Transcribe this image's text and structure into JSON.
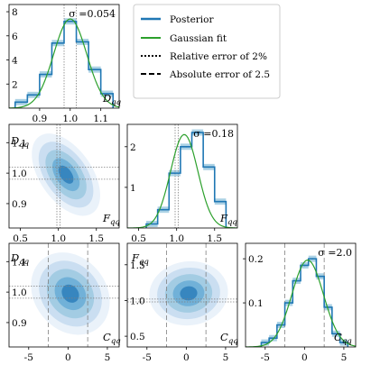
{
  "colors": {
    "posterior": "#1f77b4",
    "band": "#9ecae1",
    "gaussian": "#2ca02c",
    "reference": "#808080"
  },
  "legend": {
    "posterior": "Posterior",
    "gaussian": "Gaussian fit",
    "relative": "Relative error of 2%",
    "absolute": "Absolute error of 2.5"
  },
  "chart_data": [
    {
      "type": "histogram",
      "panel": "D_qq",
      "variable": "D_qq",
      "sigma_label": "σ =0.054",
      "x_edges": [
        0.82,
        0.86,
        0.9,
        0.94,
        0.98,
        1.02,
        1.06,
        1.1,
        1.14
      ],
      "values": [
        0.5,
        1.1,
        2.8,
        5.4,
        7.2,
        5.5,
        3.2,
        1.2
      ],
      "gaussian": {
        "mean": 1.0,
        "sd": 0.054,
        "peak": 7.4
      },
      "xlim": [
        0.8,
        1.16
      ],
      "ylim": [
        0,
        8.6
      ],
      "x_ticks": [
        0.9,
        1.0,
        1.1
      ],
      "x_tick_labels": [
        "0.9",
        "1.0",
        "1.1"
      ],
      "y_ticks": [
        2,
        4,
        6,
        8
      ],
      "y_tick_labels": [
        "2",
        "4",
        "6",
        "8"
      ],
      "ref_lines": [
        0.98,
        1.02
      ]
    },
    {
      "type": "histogram",
      "panel": "F_qq",
      "variable": "F_qq",
      "sigma_label": "σ =0.18",
      "x_edges": [
        0.6,
        0.75,
        0.9,
        1.05,
        1.2,
        1.35,
        1.5,
        1.65
      ],
      "values": [
        0.1,
        0.45,
        1.35,
        2.0,
        2.35,
        1.5,
        0.65
      ],
      "gaussian": {
        "mean": 1.1,
        "sd": 0.18,
        "peak": 2.3
      },
      "xlim": [
        0.35,
        1.8
      ],
      "ylim": [
        0,
        2.55
      ],
      "x_ticks": [
        0.5,
        1.0,
        1.5
      ],
      "x_tick_labels": [
        "0.5",
        "1.0",
        "1.5"
      ],
      "y_ticks": [
        1,
        2
      ],
      "y_tick_labels": [
        "1",
        "2"
      ],
      "ref_lines": [
        0.98,
        1.02
      ]
    },
    {
      "type": "histogram",
      "panel": "C_qq",
      "variable": "C_qq",
      "sigma_label": "σ =2.0",
      "x_edges": [
        -5.5,
        -4.5,
        -3.5,
        -2.5,
        -1.5,
        -0.5,
        0.5,
        1.5,
        2.5,
        3.5,
        4.5,
        5.5
      ],
      "values": [
        0.01,
        0.02,
        0.05,
        0.1,
        0.15,
        0.185,
        0.2,
        0.16,
        0.09,
        0.03,
        0.01
      ],
      "gaussian": {
        "mean": 0.4,
        "sd": 2.0,
        "peak": 0.197
      },
      "xlim": [
        -7.5,
        6.5
      ],
      "ylim": [
        0,
        0.235
      ],
      "x_ticks": [
        -5,
        0,
        5
      ],
      "x_tick_labels": [
        "-5",
        "0",
        "5"
      ],
      "y_ticks": [
        0.1,
        0.2
      ],
      "y_tick_labels": [
        "0.1",
        "0.2"
      ],
      "ref_lines": [
        -2.5,
        2.5
      ]
    },
    {
      "type": "contour",
      "panel": "F_qq vs D_qq",
      "x_variable": "F_qq",
      "y_variable": "D_qq",
      "center": [
        1.1,
        0.995
      ],
      "sd": [
        0.18,
        0.054
      ],
      "correlation": -0.5,
      "xlim": [
        0.35,
        1.8
      ],
      "ylim": [
        0.82,
        1.16
      ],
      "x_ticks": [
        0.5,
        1.0,
        1.5
      ],
      "x_tick_labels": [
        "0.5",
        "1.0",
        "1.5"
      ],
      "y_ticks": [
        0.9,
        1.0,
        1.1
      ],
      "y_tick_labels": [
        "0.9",
        "1.0",
        "1.1"
      ],
      "ref_lines_x": [
        0.98,
        1.02
      ],
      "ref_lines_y": [
        0.98,
        1.02
      ]
    },
    {
      "type": "contour",
      "panel": "C_qq vs D_qq",
      "x_variable": "C_qq",
      "y_variable": "D_qq",
      "center": [
        0.3,
        0.995
      ],
      "sd": [
        2.0,
        0.054
      ],
      "correlation": -0.2,
      "xlim": [
        -7.5,
        6.5
      ],
      "ylim": [
        0.82,
        1.16
      ],
      "x_ticks": [
        -5,
        0,
        5
      ],
      "x_tick_labels": [
        "-5",
        "0",
        "5"
      ],
      "y_ticks": [
        0.9,
        1.0,
        1.1
      ],
      "y_tick_labels": [
        "0.9",
        "1.0",
        "1.1"
      ],
      "ref_lines_x": [
        -2.5,
        2.5
      ],
      "ref_lines_y": [
        0.98,
        1.02
      ]
    },
    {
      "type": "contour",
      "panel": "C_qq vs F_qq",
      "x_variable": "C_qq",
      "y_variable": "F_qq",
      "center": [
        0.3,
        1.1
      ],
      "sd": [
        2.0,
        0.18
      ],
      "correlation": 0.05,
      "xlim": [
        -7.5,
        6.5
      ],
      "ylim": [
        0.35,
        1.8
      ],
      "x_ticks": [
        -5,
        0,
        5
      ],
      "x_tick_labels": [
        "-5",
        "0",
        "5"
      ],
      "y_ticks": [
        0.5,
        1.0,
        1.5
      ],
      "y_tick_labels": [
        "0.5",
        "1.0",
        "1.5"
      ],
      "ref_lines_x": [
        -2.5,
        2.5
      ],
      "ref_lines_y": [
        0.98,
        1.02
      ]
    }
  ],
  "axis_labels": {
    "d_qq": "D",
    "f_qq": "F",
    "c_qq": "C",
    "subscript": "qq"
  }
}
